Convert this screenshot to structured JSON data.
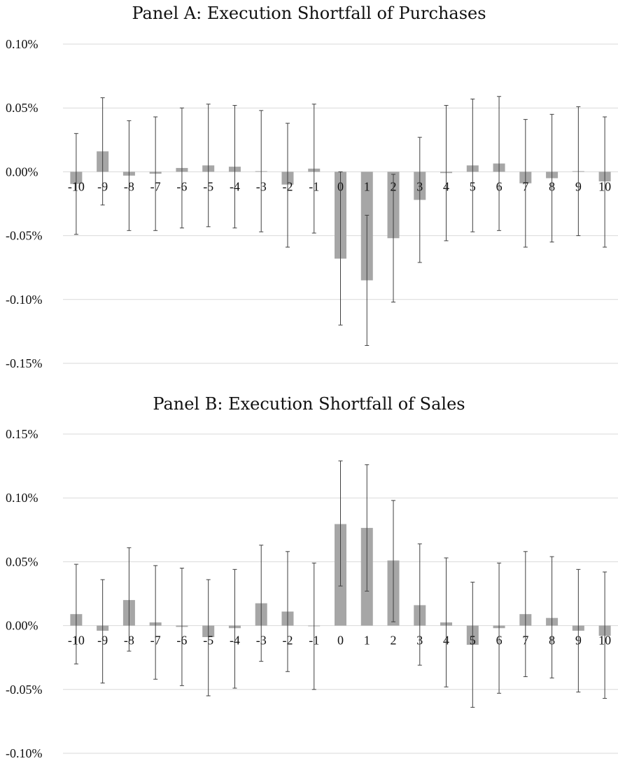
{
  "chart_data": [
    {
      "type": "bar",
      "title": "Panel A: Execution Shortfall of Purchases",
      "categories": [
        "-10",
        "-9",
        "-8",
        "-7",
        "-6",
        "-5",
        "-4",
        "-3",
        "-2",
        "-1",
        "0",
        "1",
        "2",
        "3",
        "4",
        "5",
        "6",
        "7",
        "8",
        "9",
        "10"
      ],
      "values": [
        -0.0095,
        0.016,
        -0.003,
        -0.0015,
        0.003,
        0.005,
        0.004,
        0.0005,
        -0.01,
        0.0025,
        -0.068,
        -0.085,
        -0.052,
        -0.022,
        -0.001,
        0.005,
        0.0065,
        -0.009,
        -0.005,
        0.0005,
        -0.0075
      ],
      "error_low": [
        -0.049,
        -0.026,
        -0.046,
        -0.046,
        -0.044,
        -0.043,
        -0.044,
        -0.047,
        -0.059,
        -0.048,
        -0.12,
        -0.136,
        -0.102,
        -0.071,
        -0.054,
        -0.047,
        -0.046,
        -0.059,
        -0.055,
        -0.05,
        -0.059
      ],
      "error_high": [
        0.03,
        0.058,
        0.04,
        0.043,
        0.05,
        0.053,
        0.052,
        0.048,
        0.038,
        0.053,
        0.0,
        -0.034,
        -0.002,
        0.027,
        0.052,
        0.057,
        0.059,
        0.041,
        0.045,
        0.051,
        0.043
      ],
      "yticks": [
        "0.10%",
        "0.05%",
        "0.00%",
        "-0.05%",
        "-0.10%",
        "-0.15%"
      ],
      "ytick_values": [
        0.1,
        0.05,
        0.0,
        -0.05,
        -0.1,
        -0.15
      ],
      "ylim": [
        -0.15,
        0.1
      ],
      "xlabel": "",
      "ylabel": "",
      "grid": true,
      "bar_color": "#a6a6a6",
      "error_color": "#404040",
      "grid_color": "#d9d9d9"
    },
    {
      "type": "bar",
      "title": "Panel B: Execution Shortfall of Sales",
      "categories": [
        "-10",
        "-9",
        "-8",
        "-7",
        "-6",
        "-5",
        "-4",
        "-3",
        "-2",
        "-1",
        "0",
        "1",
        "2",
        "3",
        "4",
        "5",
        "6",
        "7",
        "8",
        "9",
        "10"
      ],
      "values": [
        0.009,
        -0.004,
        0.02,
        0.0025,
        -0.001,
        -0.009,
        -0.002,
        0.0175,
        0.011,
        -0.0005,
        0.0795,
        0.0765,
        0.051,
        0.016,
        0.0025,
        -0.015,
        -0.002,
        0.009,
        0.006,
        -0.004,
        -0.008
      ],
      "error_low": [
        -0.03,
        -0.045,
        -0.02,
        -0.042,
        -0.047,
        -0.055,
        -0.049,
        -0.028,
        -0.036,
        -0.05,
        0.031,
        0.027,
        0.003,
        -0.031,
        -0.048,
        -0.064,
        -0.053,
        -0.04,
        -0.041,
        -0.052,
        -0.057
      ],
      "error_high": [
        0.048,
        0.036,
        0.061,
        0.047,
        0.045,
        0.036,
        0.044,
        0.063,
        0.058,
        0.049,
        0.129,
        0.126,
        0.098,
        0.064,
        0.053,
        0.034,
        0.049,
        0.058,
        0.054,
        0.044,
        0.042
      ],
      "yticks": [
        "0.15%",
        "0.10%",
        "0.05%",
        "0.00%",
        "-0.05%",
        "-0.10%"
      ],
      "ytick_values": [
        0.15,
        0.1,
        0.05,
        0.0,
        -0.05,
        -0.1
      ],
      "ylim": [
        -0.1,
        0.15
      ],
      "xlabel": "",
      "ylabel": "",
      "grid": true,
      "bar_color": "#a6a6a6",
      "error_color": "#404040",
      "grid_color": "#d9d9d9"
    }
  ]
}
